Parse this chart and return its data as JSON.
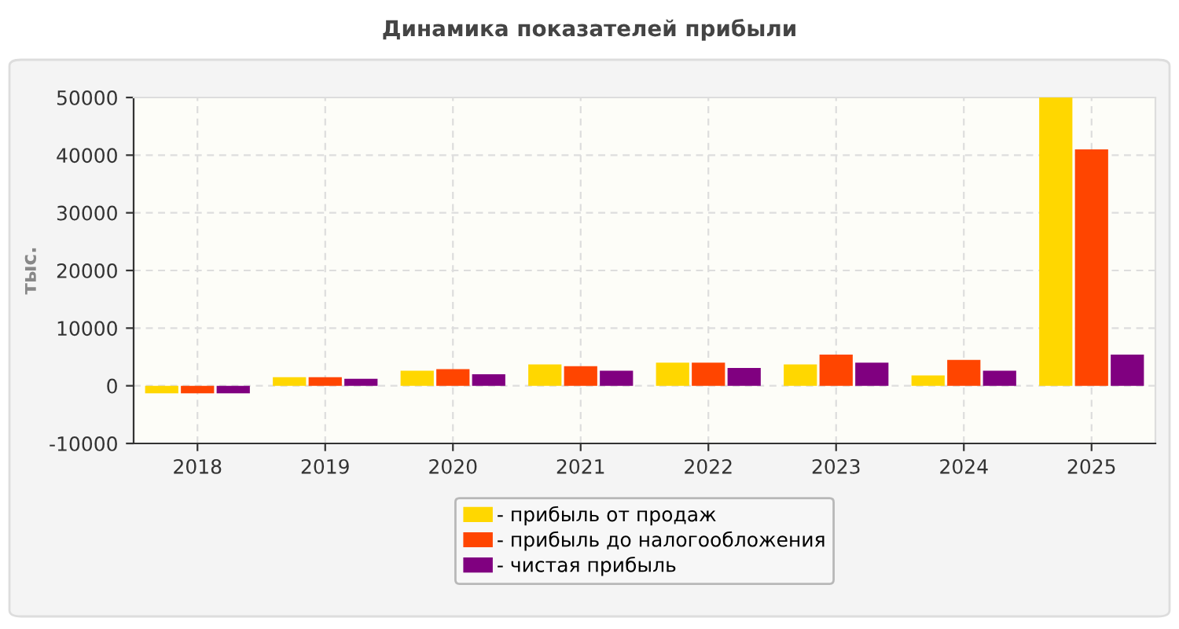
{
  "chart_data": {
    "type": "bar",
    "title": "Динамика показателей прибыли",
    "ylabel": "тыс.",
    "categories": [
      "2018",
      "2019",
      "2020",
      "2021",
      "2022",
      "2023",
      "2024",
      "2025"
    ],
    "series": [
      {
        "name": "- прибыль от продаж",
        "color": "#ffd700",
        "values": [
          -1300,
          1500,
          2600,
          3700,
          4000,
          3700,
          1800,
          50000
        ]
      },
      {
        "name": "- прибыль до налогообложения",
        "color": "#ff4500",
        "values": [
          -1300,
          1500,
          2900,
          3400,
          4000,
          5400,
          4500,
          41000
        ]
      },
      {
        "name": "- чистая прибыль",
        "color": "#800080",
        "values": [
          -1300,
          1200,
          2000,
          2600,
          3100,
          4000,
          2600,
          5400
        ]
      }
    ],
    "ylim": [
      -10000,
      50000
    ],
    "yticks": [
      -10000,
      0,
      10000,
      20000,
      30000,
      40000,
      50000
    ],
    "grid": true,
    "legend": "bottom"
  }
}
